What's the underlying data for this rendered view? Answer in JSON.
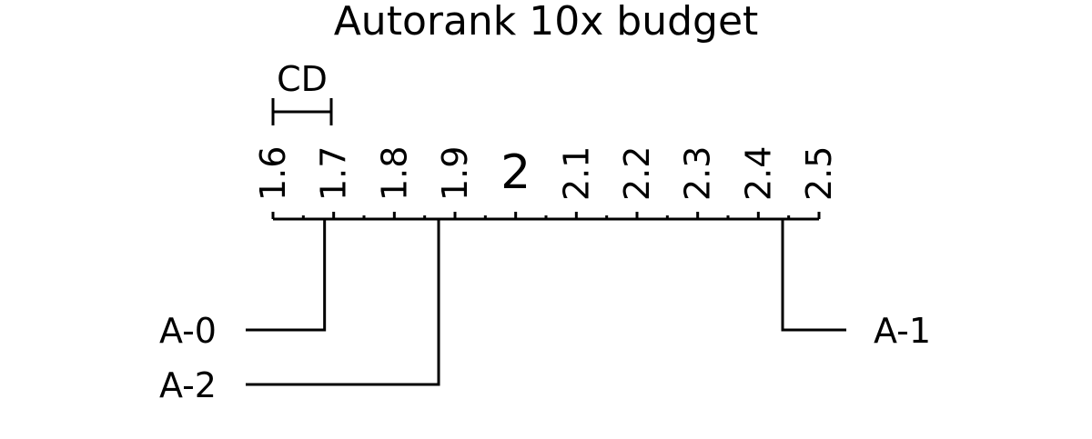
{
  "chart_data": {
    "type": "critical-difference",
    "title": "Autorank 10x budget",
    "axis": {
      "min": 1.6,
      "max": 2.5,
      "ticks": [
        {
          "value": 1.6,
          "label": "1.6"
        },
        {
          "value": 1.7,
          "label": "1.7"
        },
        {
          "value": 1.8,
          "label": "1.8"
        },
        {
          "value": 1.9,
          "label": "1.9"
        },
        {
          "value": 2.0,
          "label": "2",
          "emphasis": true
        },
        {
          "value": 2.1,
          "label": "2.1"
        },
        {
          "value": 2.2,
          "label": "2.2"
        },
        {
          "value": 2.3,
          "label": "2.3"
        },
        {
          "value": 2.4,
          "label": "2.4"
        },
        {
          "value": 2.5,
          "label": "2.5"
        }
      ],
      "minor_ticks": [
        1.65,
        1.75,
        1.85,
        1.95,
        2.05,
        2.15,
        2.25,
        2.35,
        2.45
      ]
    },
    "critical_difference": {
      "label": "CD",
      "value": 0.096
    },
    "algorithms": [
      {
        "name": "A-0",
        "rank": 1.685,
        "side": "left"
      },
      {
        "name": "A-2",
        "rank": 1.873,
        "side": "left"
      },
      {
        "name": "A-1",
        "rank": 2.44,
        "side": "right"
      }
    ],
    "color": "#000000"
  }
}
